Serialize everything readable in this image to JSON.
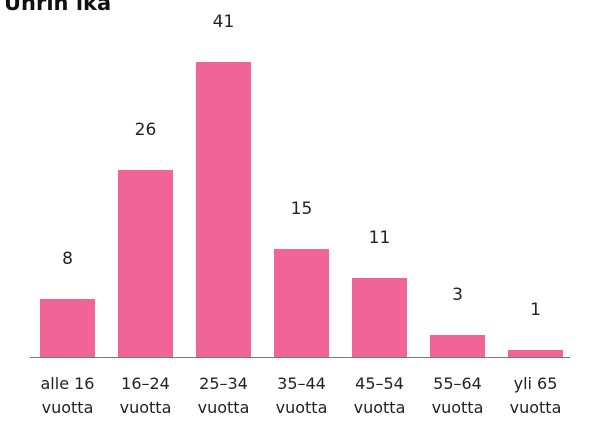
{
  "chart_data": {
    "type": "bar",
    "title": "Uhrin ikä",
    "categories": [
      "alle 16 vuotta",
      "16–24 vuotta",
      "25–34 vuotta",
      "35–44 vuotta",
      "45–54 vuotta",
      "55–64 vuotta",
      "yli 65 vuotta"
    ],
    "values": [
      8,
      26,
      41,
      15,
      11,
      3,
      1
    ],
    "color": "#f06595"
  }
}
